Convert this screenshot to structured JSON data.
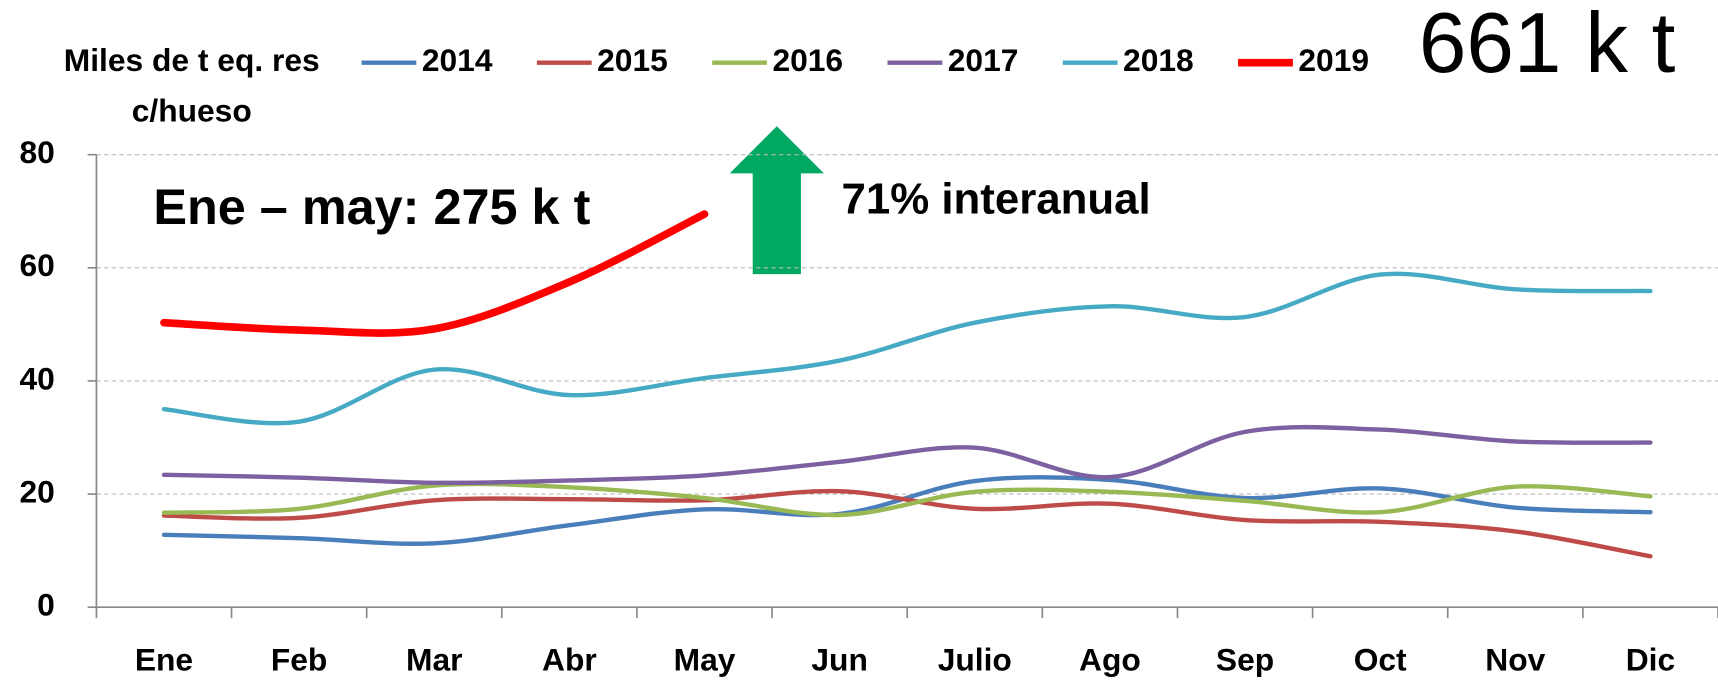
{
  "chart_data": {
    "type": "line",
    "y_label": [
      "Miles de t eq. res",
      "c/hueso"
    ],
    "annotations": [
      "Ene – may: 275 k t",
      "71% interanual",
      "661 k t"
    ],
    "categories": [
      "Ene",
      "Feb",
      "Mar",
      "Abr",
      "May",
      "Jun",
      "Julio",
      "Ago",
      "Sep",
      "Oct",
      "Nov",
      "Dic"
    ],
    "series": [
      {
        "name": "2014",
        "color": "#4a7ebb",
        "line_width": 4,
        "values": [
          12.8,
          12.2,
          11.3,
          14.5,
          17.3,
          16.5,
          22.3,
          22.5,
          19.3,
          21,
          17.6,
          16.8
        ]
      },
      {
        "name": "2015",
        "color": "#be4b48",
        "line_width": 4,
        "values": [
          16.2,
          15.8,
          18.9,
          19.1,
          18.9,
          20.5,
          17.4,
          18.3,
          15.4,
          15.1,
          13.4,
          9
        ]
      },
      {
        "name": "2016",
        "color": "#98b954",
        "line_width": 4,
        "values": [
          16.7,
          17.4,
          21.5,
          21.2,
          19.3,
          16.3,
          20.4,
          20.4,
          18.8,
          16.8,
          21.3,
          19.6
        ]
      },
      {
        "name": "2017",
        "color": "#7d60a0",
        "line_width": 4,
        "values": [
          23.4,
          22.9,
          22,
          22.4,
          23.3,
          25.7,
          28.2,
          23,
          31,
          31.4,
          29.3,
          29.1
        ]
      },
      {
        "name": "2018",
        "color": "#46aac5",
        "line_width": 4,
        "values": [
          35,
          32.8,
          42,
          37.5,
          40.5,
          43.6,
          50.3,
          53.2,
          51.3,
          58.8,
          56.2,
          55.9
        ]
      },
      {
        "name": "2019",
        "color": "#ff0000",
        "line_width": 7,
        "values": [
          50.3,
          49,
          49.2,
          57.5,
          69.5,
          null,
          null,
          null,
          null,
          null,
          null,
          null
        ]
      }
    ],
    "ylim": [
      0,
      80
    ],
    "yticks": [
      0,
      20,
      40,
      60,
      80
    ],
    "grid": true
  }
}
